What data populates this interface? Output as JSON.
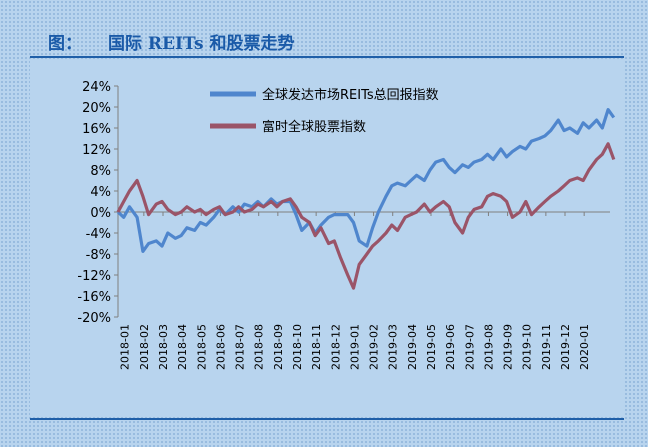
{
  "figure": {
    "prefix": "图：",
    "title": "国际 REITs 和股票走势"
  },
  "chart_data": {
    "type": "line",
    "title": "",
    "xlabel": "",
    "ylabel": "",
    "ylim": [
      -20,
      24
    ],
    "yticks": [
      "24%",
      "20%",
      "16%",
      "12%",
      "8%",
      "4%",
      "0%",
      "-4%",
      "-8%",
      "-12%",
      "-16%",
      "-20%"
    ],
    "ytick_values": [
      24,
      20,
      16,
      12,
      8,
      4,
      0,
      -4,
      -8,
      -12,
      -16,
      -20
    ],
    "x_categories": [
      "2018-01",
      "2018-02",
      "2018-03",
      "2018-04",
      "2018-05",
      "2018-06",
      "2018-07",
      "2018-08",
      "2018-09",
      "2018-10",
      "2018-11",
      "2018-12",
      "2019-01",
      "2019-02",
      "2019-03",
      "2019-04",
      "2019-05",
      "2019-06",
      "2019-07",
      "2019-08",
      "2019-09",
      "2019-10",
      "2019-11",
      "2019-12",
      "2020-01"
    ],
    "x_range": [
      0,
      25.7
    ],
    "legend_position": "top-right",
    "grid": false,
    "colors": {
      "reits": "#4f86cd",
      "stocks": "#9a5468"
    },
    "series": [
      {
        "name": "全球发达市场REITs总回报指数",
        "color": "#4f86cd",
        "points": [
          [
            0,
            0
          ],
          [
            0.3,
            -1
          ],
          [
            0.6,
            1
          ],
          [
            1.0,
            -1
          ],
          [
            1.3,
            -7.5
          ],
          [
            1.6,
            -6
          ],
          [
            2.0,
            -5.5
          ],
          [
            2.3,
            -6.5
          ],
          [
            2.6,
            -4
          ],
          [
            3.0,
            -5
          ],
          [
            3.3,
            -4.5
          ],
          [
            3.6,
            -3
          ],
          [
            4.0,
            -3.5
          ],
          [
            4.3,
            -2
          ],
          [
            4.6,
            -2.5
          ],
          [
            5.0,
            -1
          ],
          [
            5.3,
            0.5
          ],
          [
            5.6,
            -0.5
          ],
          [
            6.0,
            1
          ],
          [
            6.3,
            0
          ],
          [
            6.6,
            1.5
          ],
          [
            7.0,
            1
          ],
          [
            7.3,
            2
          ],
          [
            7.6,
            1
          ],
          [
            8.0,
            2.5
          ],
          [
            8.3,
            1.5
          ],
          [
            8.6,
            2
          ],
          [
            9.0,
            2
          ],
          [
            9.3,
            -0.5
          ],
          [
            9.6,
            -3.5
          ],
          [
            10.0,
            -2
          ],
          [
            10.3,
            -4
          ],
          [
            10.6,
            -2.5
          ],
          [
            11.0,
            -1
          ],
          [
            11.3,
            -0.5
          ],
          [
            11.6,
            -0.5
          ],
          [
            12.0,
            -0.5
          ],
          [
            12.3,
            -2
          ],
          [
            12.6,
            -5.5
          ],
          [
            13.0,
            -6.5
          ],
          [
            13.3,
            -3
          ],
          [
            13.6,
            0
          ],
          [
            14.0,
            3
          ],
          [
            14.3,
            5
          ],
          [
            14.6,
            5.5
          ],
          [
            15.0,
            5
          ],
          [
            15.3,
            6
          ],
          [
            15.6,
            7
          ],
          [
            16.0,
            6
          ],
          [
            16.3,
            8
          ],
          [
            16.6,
            9.5
          ],
          [
            17.0,
            10
          ],
          [
            17.3,
            8.5
          ],
          [
            17.6,
            7.5
          ],
          [
            18.0,
            9
          ],
          [
            18.3,
            8.5
          ],
          [
            18.6,
            9.5
          ],
          [
            19.0,
            10
          ],
          [
            19.3,
            11
          ],
          [
            19.6,
            10
          ],
          [
            20.0,
            12
          ],
          [
            20.3,
            10.5
          ],
          [
            20.6,
            11.5
          ],
          [
            21.0,
            12.5
          ],
          [
            21.3,
            12
          ],
          [
            21.6,
            13.5
          ],
          [
            22.0,
            14
          ],
          [
            22.3,
            14.5
          ],
          [
            22.6,
            15.5
          ],
          [
            23.0,
            17.5
          ],
          [
            23.3,
            15.5
          ],
          [
            23.6,
            16
          ],
          [
            24.0,
            15
          ],
          [
            24.3,
            17
          ],
          [
            24.6,
            16
          ],
          [
            25.0,
            17.5
          ],
          [
            25.3,
            16
          ],
          [
            25.6,
            19.5
          ],
          [
            25.9,
            18
          ]
        ]
      },
      {
        "name": "富时全球股票指数",
        "color": "#9a5468",
        "points": [
          [
            0,
            0
          ],
          [
            0.3,
            2
          ],
          [
            0.6,
            4
          ],
          [
            1.0,
            6
          ],
          [
            1.3,
            3
          ],
          [
            1.6,
            -0.5
          ],
          [
            2.0,
            1.5
          ],
          [
            2.3,
            2
          ],
          [
            2.6,
            0.5
          ],
          [
            3.0,
            -0.5
          ],
          [
            3.3,
            0
          ],
          [
            3.6,
            1
          ],
          [
            4.0,
            0
          ],
          [
            4.3,
            0.5
          ],
          [
            4.6,
            -0.5
          ],
          [
            5.0,
            0.5
          ],
          [
            5.3,
            1
          ],
          [
            5.6,
            -0.5
          ],
          [
            6.0,
            0
          ],
          [
            6.3,
            1
          ],
          [
            6.6,
            0
          ],
          [
            7.0,
            0.5
          ],
          [
            7.3,
            1.5
          ],
          [
            7.6,
            1
          ],
          [
            8.0,
            2
          ],
          [
            8.3,
            1
          ],
          [
            8.6,
            2
          ],
          [
            9.0,
            2.5
          ],
          [
            9.3,
            1
          ],
          [
            9.6,
            -1
          ],
          [
            10.0,
            -2
          ],
          [
            10.3,
            -4.5
          ],
          [
            10.6,
            -3
          ],
          [
            11.0,
            -6
          ],
          [
            11.3,
            -5.5
          ],
          [
            11.6,
            -8.5
          ],
          [
            12.0,
            -12
          ],
          [
            12.3,
            -14.5
          ],
          [
            12.6,
            -10
          ],
          [
            13.0,
            -8
          ],
          [
            13.3,
            -6.5
          ],
          [
            13.6,
            -5.5
          ],
          [
            14.0,
            -4
          ],
          [
            14.3,
            -2.5
          ],
          [
            14.6,
            -3.5
          ],
          [
            15.0,
            -1
          ],
          [
            15.3,
            -0.5
          ],
          [
            15.6,
            0
          ],
          [
            16.0,
            1.5
          ],
          [
            16.3,
            0
          ],
          [
            16.6,
            1
          ],
          [
            17.0,
            2
          ],
          [
            17.3,
            1
          ],
          [
            17.6,
            -2
          ],
          [
            18.0,
            -4
          ],
          [
            18.3,
            -1
          ],
          [
            18.6,
            0.5
          ],
          [
            19.0,
            1
          ],
          [
            19.3,
            3
          ],
          [
            19.6,
            3.5
          ],
          [
            20.0,
            3
          ],
          [
            20.3,
            2
          ],
          [
            20.6,
            -1
          ],
          [
            21.0,
            0
          ],
          [
            21.3,
            2
          ],
          [
            21.6,
            -0.5
          ],
          [
            22.0,
            1
          ],
          [
            22.3,
            2
          ],
          [
            22.6,
            3
          ],
          [
            23.0,
            4
          ],
          [
            23.3,
            5
          ],
          [
            23.6,
            6
          ],
          [
            24.0,
            6.5
          ],
          [
            24.3,
            6
          ],
          [
            24.6,
            8
          ],
          [
            25.0,
            10
          ],
          [
            25.3,
            11
          ],
          [
            25.6,
            13
          ],
          [
            25.9,
            10
          ]
        ]
      }
    ]
  }
}
